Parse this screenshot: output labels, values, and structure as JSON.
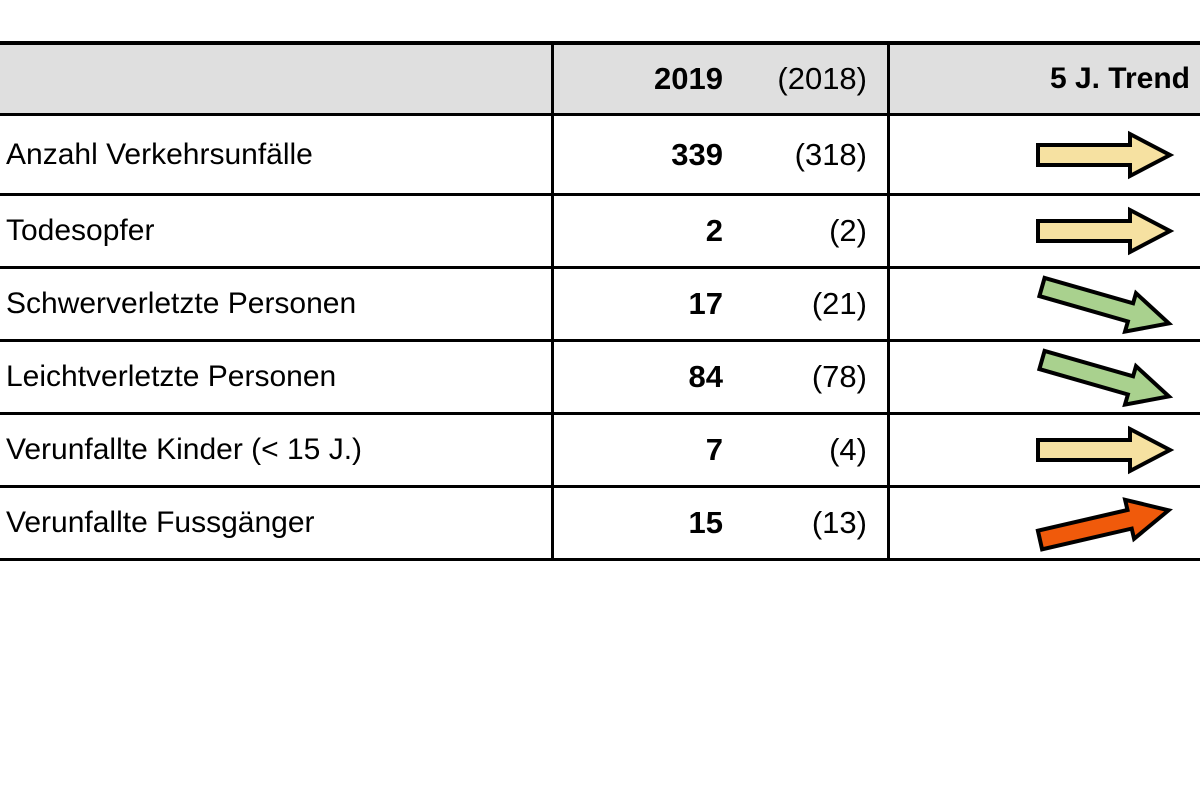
{
  "chart_data": {
    "type": "table",
    "title": "",
    "header": {
      "label": "",
      "year": "2019",
      "prev_year": "(2018)",
      "trend": "5 J. Trend"
    },
    "rows": [
      {
        "label": "Anzahl Verkehrsunfälle",
        "value": "339",
        "prev_value": "(318)",
        "trend": "right"
      },
      {
        "label": "Todesopfer",
        "value": "2",
        "prev_value": "(2)",
        "trend": "right"
      },
      {
        "label": "Schwerverletzte Personen",
        "value": "17",
        "prev_value": "(21)",
        "trend": "down-right"
      },
      {
        "label": "Leichtverletzte Personen",
        "value": "84",
        "prev_value": "(78)",
        "trend": "down-right"
      },
      {
        "label": "Verunfallte Kinder (< 15 J.)",
        "value": "7",
        "prev_value": "(4)",
        "trend": "right"
      },
      {
        "label": "Verunfallte Fussgänger",
        "value": "15",
        "prev_value": "(13)",
        "trend": "up-right"
      }
    ],
    "trend_icon_names": {
      "right": "arrow-right-icon",
      "down-right": "arrow-down-right-icon",
      "up-right": "arrow-up-right-icon"
    },
    "colors": {
      "trends": {
        "right": "#F6E1A1",
        "down-right": "#A9D18E",
        "up-right": "#F05A0B"
      },
      "header_bg": "#DFDFDF",
      "border": "#000000"
    }
  }
}
